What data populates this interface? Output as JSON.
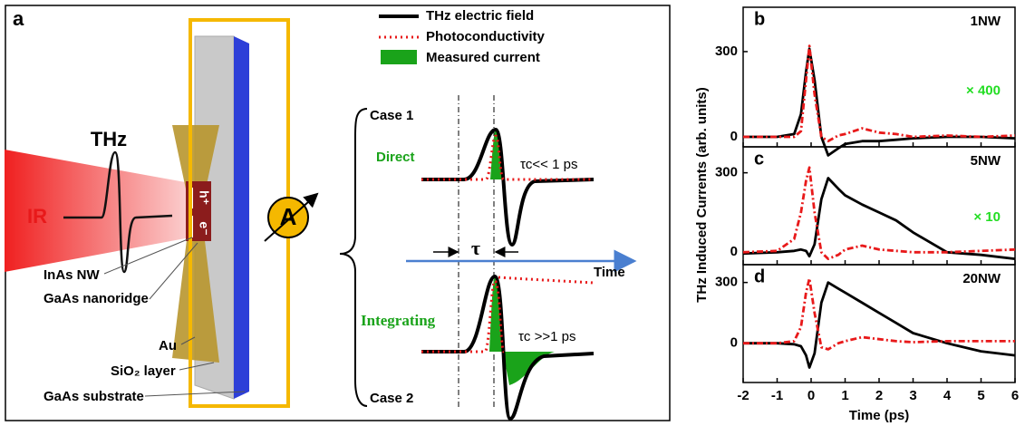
{
  "panel_a": {
    "letter": "a",
    "thz": "THz",
    "ir": "IR",
    "hole": "h⁺",
    "electron": "e⁻",
    "ammeter": "A",
    "labels": [
      "InAs NW",
      "GaAs nanoridge",
      "Au",
      "SiO₂ layer",
      "GaAs substrate"
    ],
    "legend": [
      "THz electric field",
      "Photoconductivity",
      "Measured current"
    ],
    "case1": "Case 1",
    "direct": "Direct",
    "tau_short": "τc<< 1 ps",
    "tau": "τ",
    "time": "Time",
    "integrating": "Integrating",
    "tau_long": "τc >>1 ps",
    "case2": "Case 2"
  },
  "chart_data": [
    {
      "type": "line",
      "letter": "b",
      "annotation": "1NW",
      "scale_label": "× 400",
      "ylabel": "THz Induced Currents (arb. units)",
      "x": [
        -2,
        -1,
        -0.5,
        -0.3,
        -0.15,
        -0.05,
        0.1,
        0.3,
        0.5,
        0.8,
        1,
        1.5,
        2,
        2.5,
        3,
        4,
        5,
        6
      ],
      "series": [
        {
          "color": "#000000",
          "values": [
            0,
            0,
            10,
            80,
            230,
            310,
            200,
            0,
            -65,
            -40,
            -25,
            -15,
            -15,
            -10,
            -5,
            0,
            0,
            -5
          ]
        },
        {
          "color": "#e8191a",
          "values": [
            0,
            0,
            0,
            20,
            200,
            320,
            150,
            0,
            -15,
            5,
            10,
            30,
            15,
            10,
            0,
            5,
            0,
            5
          ]
        }
      ],
      "xlim": [
        -2,
        6
      ],
      "xticks": [
        -2,
        -1,
        0,
        1,
        2,
        3,
        4,
        5,
        6
      ],
      "ylim": [
        -35,
        456
      ],
      "yticks": [
        0,
        300
      ]
    },
    {
      "type": "line",
      "letter": "c",
      "annotation": "5NW",
      "scale_label": "× 10",
      "x": [
        -2,
        -1,
        -0.5,
        -0.3,
        -0.15,
        -0.05,
        0.1,
        0.3,
        0.5,
        0.8,
        1,
        1.5,
        2,
        2.5,
        3,
        4,
        5,
        6
      ],
      "series": [
        {
          "color": "#000000",
          "values": [
            -5,
            0,
            5,
            10,
            5,
            -15,
            30,
            200,
            280,
            240,
            215,
            180,
            150,
            120,
            75,
            0,
            -10,
            -25
          ]
        },
        {
          "color": "#e8191a",
          "values": [
            0,
            5,
            50,
            150,
            270,
            320,
            150,
            0,
            -25,
            -10,
            10,
            25,
            10,
            5,
            0,
            0,
            5,
            10
          ]
        }
      ],
      "xlim": [
        -2,
        6
      ],
      "xticks": [
        -2,
        -1,
        0,
        1,
        2,
        3,
        4,
        5,
        6
      ],
      "ylim": [
        -47,
        398
      ],
      "yticks": [
        0,
        300
      ]
    },
    {
      "type": "line",
      "letter": "d",
      "annotation": "20NW",
      "xlabel": "Time (ps)",
      "x": [
        -2,
        -1,
        -0.5,
        -0.3,
        -0.15,
        -0.05,
        0.1,
        0.3,
        0.5,
        0.8,
        1,
        1.5,
        2,
        2.5,
        3,
        4,
        5,
        6
      ],
      "series": [
        {
          "color": "#000000",
          "values": [
            0,
            0,
            -5,
            -15,
            -60,
            -120,
            -50,
            200,
            300,
            270,
            250,
            200,
            150,
            100,
            50,
            0,
            -40,
            -60
          ]
        },
        {
          "color": "#e8191a",
          "values": [
            0,
            0,
            10,
            80,
            250,
            320,
            150,
            -20,
            -30,
            0,
            10,
            30,
            20,
            10,
            5,
            10,
            10,
            10
          ]
        }
      ],
      "xlim": [
        -2,
        6
      ],
      "xticks": [
        -2,
        -1,
        0,
        1,
        2,
        3,
        4,
        5,
        6
      ],
      "ylim": [
        -194,
        388
      ],
      "yticks": [
        0,
        300
      ]
    }
  ]
}
